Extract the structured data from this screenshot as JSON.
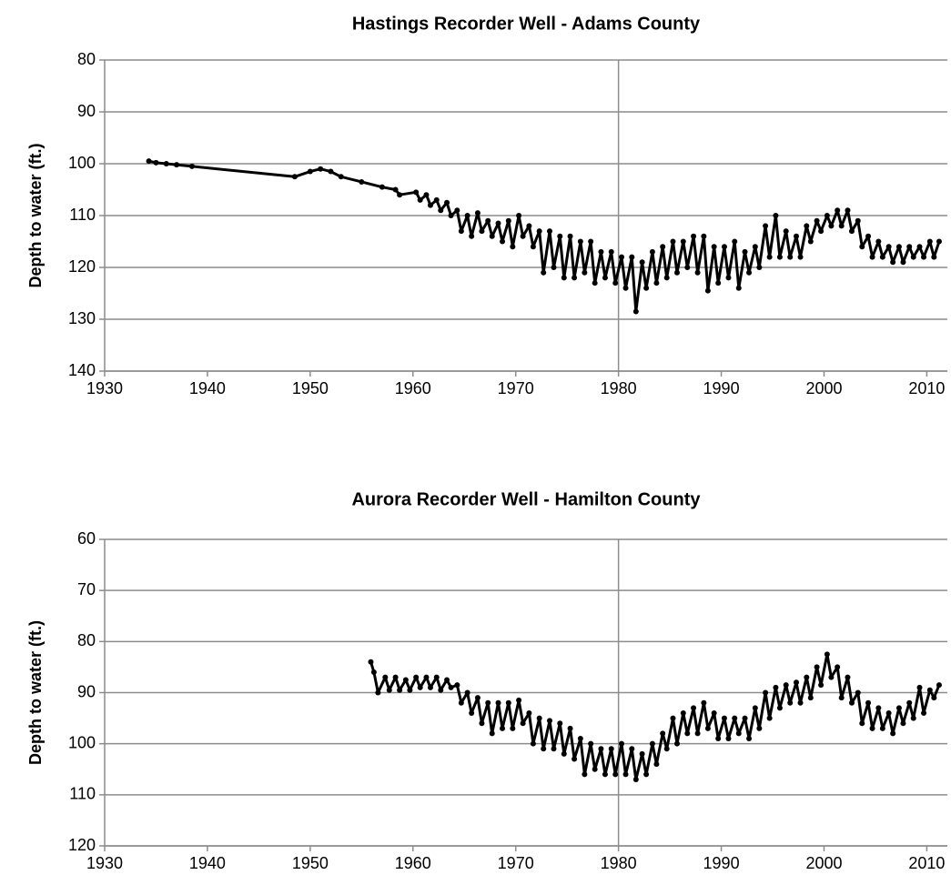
{
  "chart_data": [
    {
      "type": "line",
      "title": "Hastings Recorder Well - Adams County",
      "y_label": "Depth to water (ft.)",
      "xlim": [
        1930,
        2012
      ],
      "xticks": [
        1930,
        1940,
        1950,
        1960,
        1970,
        1980,
        1990,
        2000,
        2010
      ],
      "ylim": [
        80,
        140
      ],
      "yticks": [
        80,
        90,
        100,
        110,
        120,
        130,
        140
      ],
      "y_reversed": true,
      "grid": true,
      "vlines": [
        1980
      ],
      "series": [
        {
          "name": "Hastings",
          "color": "#000000",
          "x": [
            1934.3,
            1935,
            1936,
            1937,
            1938.5,
            1948.5,
            1950,
            1951,
            1952,
            1953,
            1955,
            1957,
            1958.3,
            1958.7,
            1960.3,
            1960.7,
            1961.3,
            1961.7,
            1962.3,
            1962.7,
            1963.3,
            1963.7,
            1964.3,
            1964.7,
            1965.3,
            1965.7,
            1966.3,
            1966.7,
            1967.3,
            1967.7,
            1968.3,
            1968.7,
            1969.3,
            1969.7,
            1970.3,
            1970.7,
            1971.3,
            1971.7,
            1972.3,
            1972.7,
            1973.3,
            1973.7,
            1974.3,
            1974.7,
            1975.3,
            1975.7,
            1976.3,
            1976.7,
            1977.3,
            1977.7,
            1978.3,
            1978.7,
            1979.3,
            1979.7,
            1980.3,
            1980.7,
            1981.3,
            1981.7,
            1982.3,
            1982.7,
            1983.3,
            1983.7,
            1984.3,
            1984.7,
            1985.3,
            1985.7,
            1986.3,
            1986.7,
            1987.3,
            1987.7,
            1988.3,
            1988.7,
            1989.3,
            1989.7,
            1990.3,
            1990.7,
            1991.3,
            1991.7,
            1992.3,
            1992.7,
            1993.3,
            1993.7,
            1994.3,
            1994.7,
            1995.3,
            1995.7,
            1996.3,
            1996.7,
            1997.3,
            1997.7,
            1998.3,
            1998.7,
            1999.3,
            1999.7,
            2000.3,
            2000.7,
            2001.3,
            2001.7,
            2002.3,
            2002.7,
            2003.3,
            2003.7,
            2004.3,
            2004.7,
            2005.3,
            2005.7,
            2006.3,
            2006.7,
            2007.3,
            2007.7,
            2008.3,
            2008.7,
            2009.3,
            2009.7,
            2010.3,
            2010.7,
            2011.2
          ],
          "values": [
            99.5,
            99.8,
            100,
            100.2,
            100.5,
            102.5,
            101.5,
            101,
            101.5,
            102.5,
            103.5,
            104.5,
            105,
            106,
            105.5,
            107,
            106,
            108,
            107,
            109,
            107.5,
            110,
            109,
            113,
            110,
            114,
            109.5,
            113,
            111,
            114,
            111.5,
            115,
            111,
            116,
            110,
            114,
            112,
            116,
            113,
            121,
            113,
            120,
            114,
            122,
            114,
            122,
            115,
            121,
            115,
            123,
            117,
            122,
            117,
            123,
            118,
            124,
            118,
            128.5,
            119,
            124,
            117,
            123,
            116,
            122,
            115,
            121,
            115,
            120,
            114,
            121,
            114,
            124.5,
            116,
            123,
            116,
            122,
            115,
            124,
            117,
            121,
            116,
            120,
            112,
            118,
            110,
            118,
            113,
            118,
            114,
            118,
            112,
            115,
            111,
            113,
            110,
            112,
            109,
            112,
            109,
            113,
            111,
            116,
            114,
            118,
            115,
            118,
            116,
            119,
            116,
            119,
            116,
            118,
            116,
            118,
            115,
            118,
            115
          ]
        }
      ]
    },
    {
      "type": "line",
      "title": "Aurora Recorder Well - Hamilton County",
      "y_label": "Depth to water (ft.)",
      "xlim": [
        1930,
        2012
      ],
      "xticks": [
        1930,
        1940,
        1950,
        1960,
        1970,
        1980,
        1990,
        2000,
        2010
      ],
      "ylim": [
        60,
        120
      ],
      "yticks": [
        60,
        70,
        80,
        90,
        100,
        110,
        120
      ],
      "y_reversed": true,
      "grid": true,
      "vlines": [
        1980
      ],
      "series": [
        {
          "name": "Aurora",
          "color": "#000000",
          "x": [
            1955.9,
            1956.2,
            1956.6,
            1957.3,
            1957.7,
            1958.3,
            1958.7,
            1959.3,
            1959.7,
            1960.3,
            1960.7,
            1961.3,
            1961.7,
            1962.3,
            1962.7,
            1963.3,
            1963.7,
            1964.3,
            1964.7,
            1965.3,
            1965.7,
            1966.3,
            1966.7,
            1967.3,
            1967.7,
            1968.3,
            1968.7,
            1969.3,
            1969.7,
            1970.3,
            1970.7,
            1971.3,
            1971.7,
            1972.3,
            1972.7,
            1973.3,
            1973.7,
            1974.3,
            1974.7,
            1975.3,
            1975.7,
            1976.3,
            1976.7,
            1977.3,
            1977.7,
            1978.3,
            1978.7,
            1979.3,
            1979.7,
            1980.3,
            1980.7,
            1981.3,
            1981.7,
            1982.3,
            1982.7,
            1983.3,
            1983.7,
            1984.3,
            1984.7,
            1985.3,
            1985.7,
            1986.3,
            1986.7,
            1987.3,
            1987.7,
            1988.3,
            1988.7,
            1989.3,
            1989.7,
            1990.3,
            1990.7,
            1991.3,
            1991.7,
            1992.3,
            1992.7,
            1993.3,
            1993.7,
            1994.3,
            1994.7,
            1995.3,
            1995.7,
            1996.3,
            1996.7,
            1997.3,
            1997.7,
            1998.3,
            1998.7,
            1999.3,
            1999.7,
            2000.3,
            2000.7,
            2001.3,
            2001.7,
            2002.3,
            2002.7,
            2003.3,
            2003.7,
            2004.3,
            2004.7,
            2005.3,
            2005.7,
            2006.3,
            2006.7,
            2007.3,
            2007.7,
            2008.3,
            2008.7,
            2009.3,
            2009.7,
            2010.3,
            2010.7,
            2011.2
          ],
          "values": [
            84,
            86,
            90,
            87,
            89.5,
            87,
            89.5,
            87.5,
            89.5,
            87,
            89,
            87,
            89,
            87,
            89.5,
            87.5,
            89,
            88.5,
            92,
            90,
            94,
            91,
            96,
            92,
            98,
            92,
            97,
            92,
            97,
            91.5,
            96,
            94,
            100,
            95,
            101,
            95.5,
            101,
            96,
            102,
            97,
            103,
            99,
            106,
            100,
            105,
            101,
            106,
            101,
            106,
            100,
            106,
            101,
            107,
            102,
            106,
            100,
            104,
            98,
            101,
            95,
            100,
            94,
            98,
            93,
            98,
            92,
            97,
            94,
            99,
            95,
            99,
            95,
            98,
            95,
            99,
            93,
            97,
            90,
            95,
            89,
            93,
            88.5,
            92,
            88,
            92,
            87,
            91,
            85,
            88.5,
            82.5,
            87,
            85,
            91,
            87,
            92,
            90,
            96,
            92,
            97,
            93,
            97,
            94,
            98,
            93,
            96,
            92,
            95,
            89,
            94,
            89.5,
            91,
            88.5
          ]
        }
      ]
    }
  ]
}
